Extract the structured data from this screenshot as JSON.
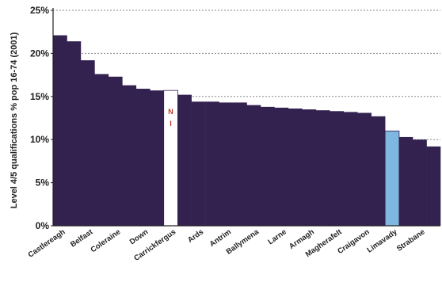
{
  "chart_data": {
    "type": "bar",
    "ylabel": "Level 4/5 qualifications % pop 16-74 (2001)",
    "ylim": [
      0,
      25
    ],
    "yticks": [
      "0%",
      "5%",
      "10%",
      "15%",
      "20%",
      "25%"
    ],
    "ytick_values": [
      0,
      5,
      10,
      15,
      20,
      25
    ],
    "grid": "dotted horizontal",
    "labelled_categories": [
      "Castlereagh",
      "Belfast",
      "Coleraine",
      "Down",
      "Carrickfergus",
      "Ards",
      "Antrim",
      "Ballymena",
      "Larne",
      "Armagh",
      "Magherafelt",
      "Craigavon",
      "Limavady",
      "Strabane"
    ],
    "values": [
      22.1,
      21.4,
      19.2,
      17.6,
      17.3,
      16.3,
      15.9,
      15.7,
      15.7,
      15.2,
      14.4,
      14.4,
      14.3,
      14.3,
      14.0,
      13.8,
      13.7,
      13.6,
      13.5,
      13.4,
      13.3,
      13.2,
      13.1,
      12.7,
      11.0,
      10.3,
      10.0,
      9.2
    ],
    "colors": {
      "bar": "#33214f",
      "ni": "#ffffff",
      "limavady": "#7fb7e0",
      "grid": "#888888"
    },
    "highlights": [
      {
        "index": 8,
        "label": "NI",
        "text": [
          "N",
          "I"
        ],
        "color": "ni"
      },
      {
        "index": 24,
        "label": "Limavady",
        "color": "limavady"
      }
    ]
  }
}
